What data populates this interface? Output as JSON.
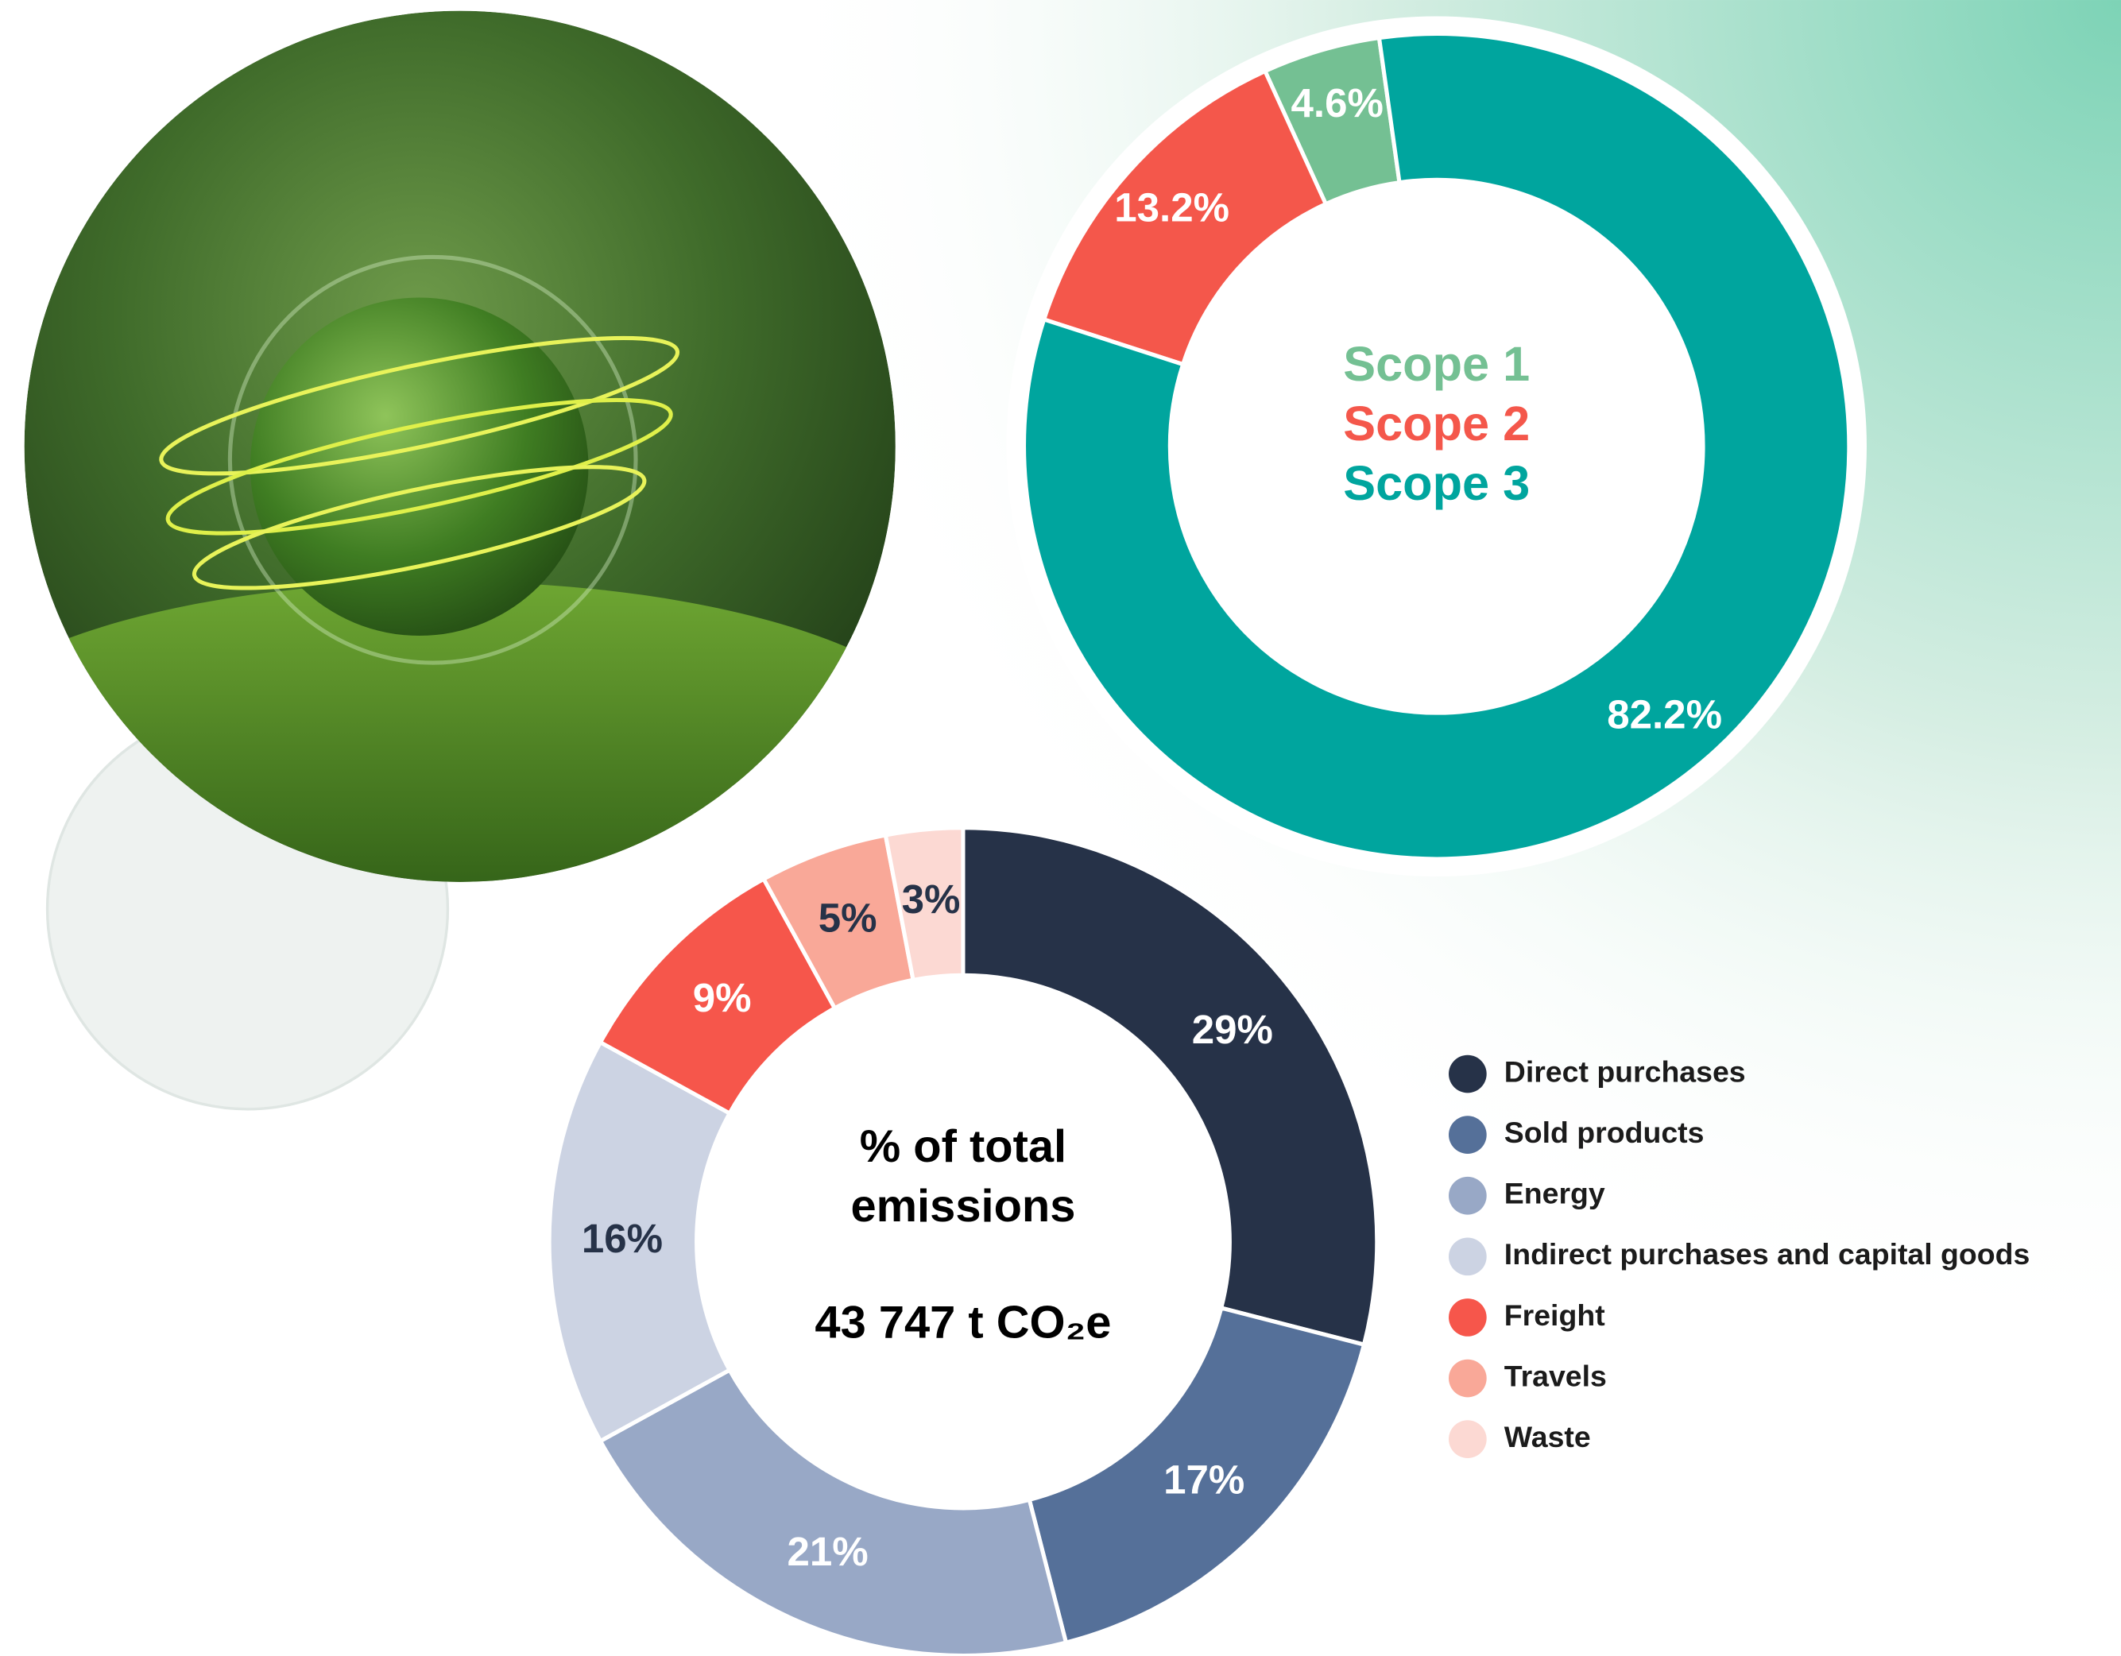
{
  "chart_data": [
    {
      "type": "donut",
      "center_texts": [
        "Scope 1",
        "Scope 2",
        "Scope 3"
      ],
      "categories": [
        "Scope 1",
        "Scope 2",
        "Scope 3"
      ],
      "values": [
        4.6,
        13.2,
        82.2
      ],
      "value_labels": [
        "4.6%",
        "13.2%",
        "82.2%"
      ],
      "colors": [
        "#74c093",
        "#f4574b",
        "#00a59e"
      ],
      "label_colors": [
        "#ffffff",
        "#ffffff",
        "#ffffff"
      ],
      "direction": "counterclockwise"
    },
    {
      "type": "donut",
      "center_texts": [
        "% of total",
        "emissions"
      ],
      "subtitle": "43 747 t CO₂e",
      "categories": [
        "Direct purchases",
        "Sold products",
        "Energy",
        "Indirect purchases and capital goods",
        "Freight",
        "Travels",
        "Waste"
      ],
      "values": [
        29,
        17,
        21,
        16,
        9,
        5,
        3
      ],
      "value_labels": [
        "29%",
        "17%",
        "21%",
        "16%",
        "9%",
        "5%",
        "3%"
      ],
      "colors": [
        "#263248",
        "#557099",
        "#98a8c6",
        "#ccd3e3",
        "#f6564b",
        "#f9a898",
        "#fcd9d3"
      ],
      "label_colors": [
        "#ffffff",
        "#ffffff",
        "#ffffff",
        "#263248",
        "#ffffff",
        "#263248",
        "#263248"
      ],
      "direction": "clockwise",
      "legend": "right"
    }
  ]
}
